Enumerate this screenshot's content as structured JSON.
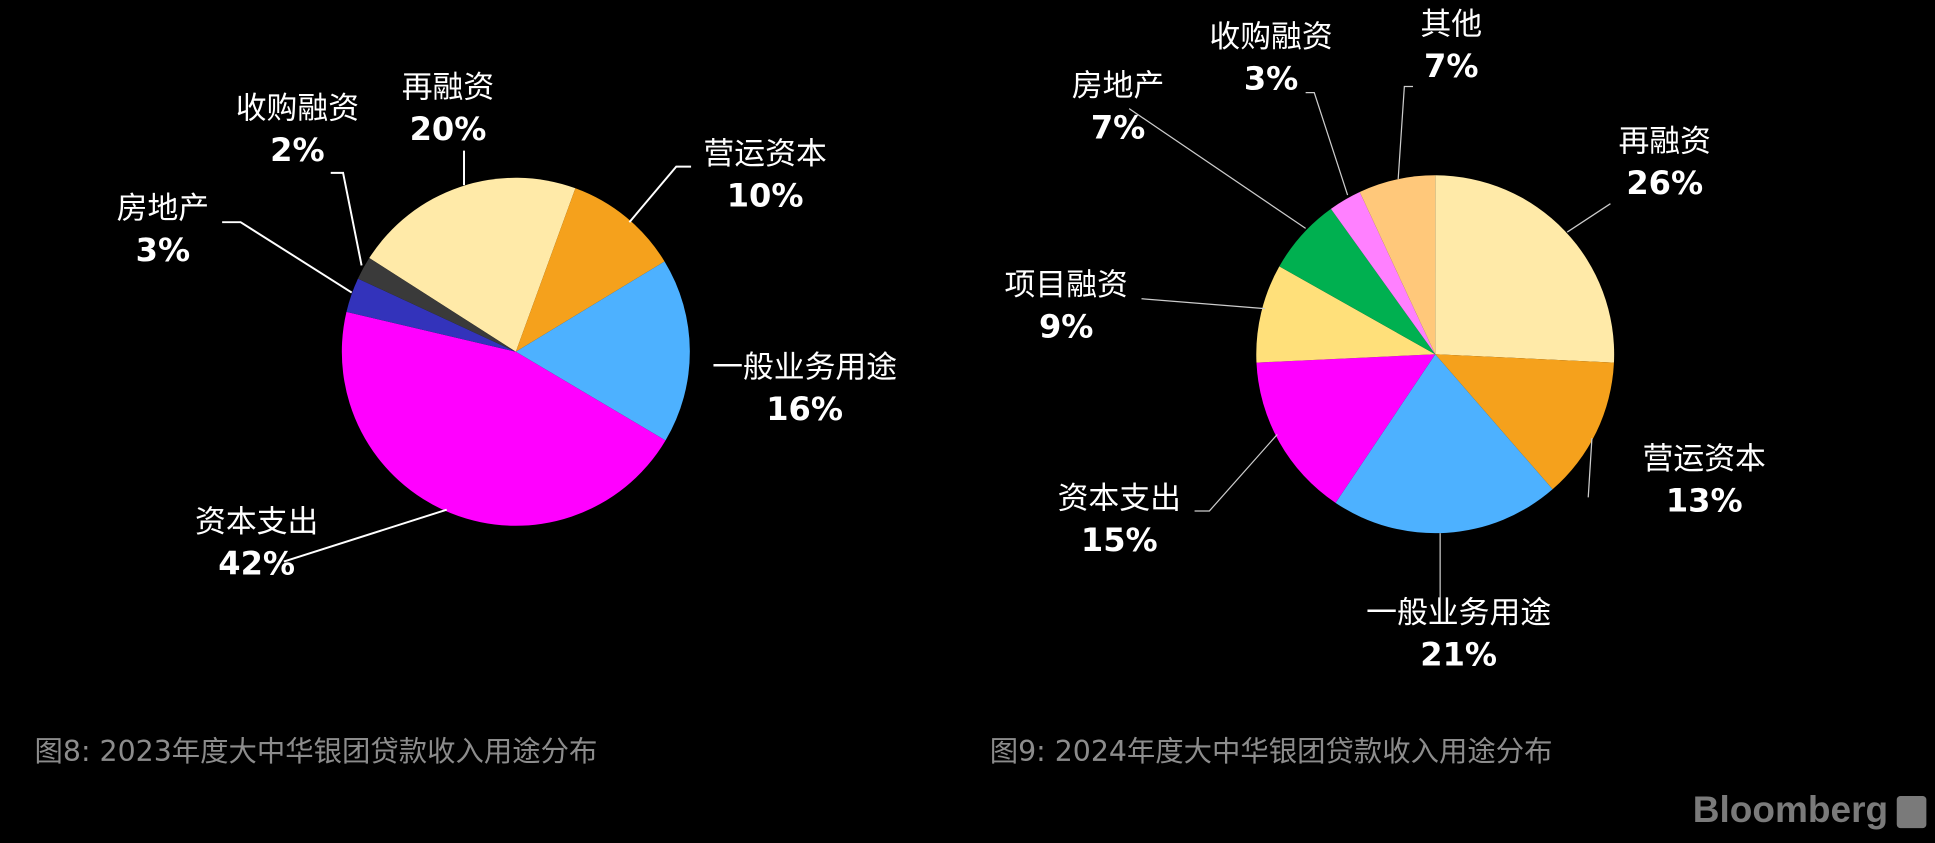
{
  "chart_data": [
    {
      "type": "pie",
      "title": "图8: 2023年度大中华银团贷款收入用途分布",
      "categories": [
        "再融资",
        "营运资本",
        "一般业务用途",
        "资本支出",
        "房地产",
        "收购融资"
      ],
      "values": [
        20,
        10,
        16,
        42,
        3,
        2
      ],
      "value_labels": [
        "20%",
        "10%",
        "16%",
        "42%",
        "3%",
        "2%"
      ],
      "colors": [
        "#ffeaa8",
        "#f5a11c",
        "#4db1ff",
        "#ff00ff",
        "#3333bb",
        "#3a3a3a"
      ]
    },
    {
      "type": "pie",
      "title": "图9: 2024年度大中华银团贷款收入用途分布",
      "categories": [
        "再融资",
        "营运资本",
        "一般业务用途",
        "资本支出",
        "项目融资",
        "房地产",
        "收购融资",
        "其他"
      ],
      "values": [
        26,
        13,
        21,
        15,
        9,
        7,
        3,
        7
      ],
      "value_labels": [
        "26%",
        "13%",
        "21%",
        "15%",
        "9%",
        "7%",
        "3%",
        "7%"
      ],
      "colors": [
        "#ffeaa8",
        "#f5a11c",
        "#4db1ff",
        "#ff00ff",
        "#ffe07a",
        "#00b050",
        "#ff80ff",
        "#ffc87a"
      ]
    }
  ],
  "source": "Bloomberg"
}
